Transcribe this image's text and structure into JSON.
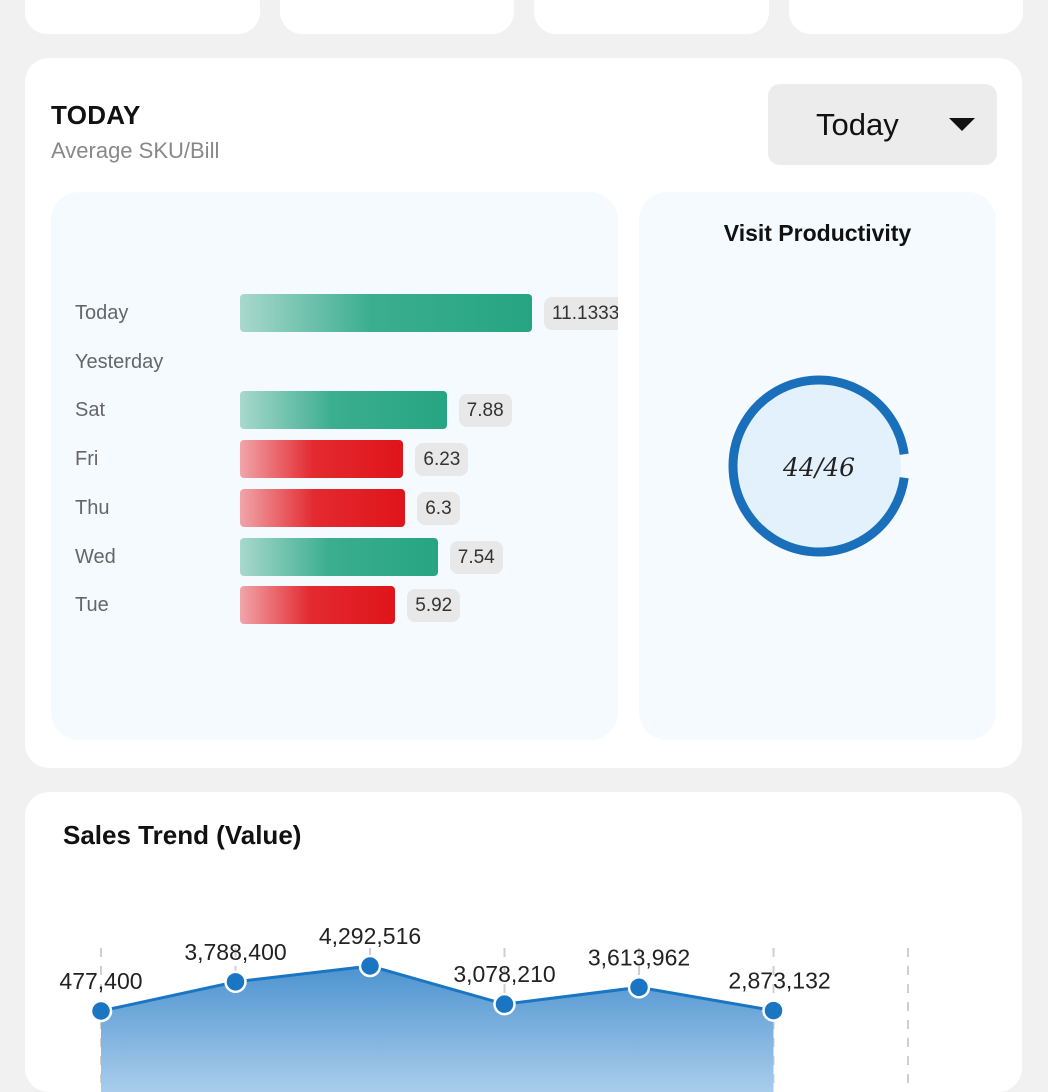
{
  "sku_card": {
    "title": "TODAY",
    "subtitle": "Average SKU/Bill",
    "period_selected": "Today"
  },
  "chart_data": [
    {
      "type": "bar",
      "orientation": "horizontal",
      "categories": [
        "Today",
        "Yesterday",
        "Sat",
        "Fri",
        "Thu",
        "Wed",
        "Tue"
      ],
      "values": [
        11.1333,
        null,
        7.88,
        6.23,
        6.3,
        7.54,
        5.92
      ],
      "value_labels": [
        "11.1333",
        "",
        "7.88",
        "6.23",
        "6.3",
        "7.54",
        "5.92"
      ],
      "status": [
        "good",
        "none",
        "good",
        "bad",
        "bad",
        "good",
        "bad"
      ],
      "xlim": [
        0,
        11.1333
      ],
      "colors": {
        "good": "#26a583",
        "bad": "#e0141b"
      }
    },
    {
      "type": "line",
      "title": "Sales Trend (Value)",
      "values": [
        477400,
        3788400,
        4292516,
        3078210,
        3613962,
        2873132
      ],
      "value_labels": [
        "477,400",
        "3,788,400",
        "4,292,516",
        "3,078,210",
        "3,613,962",
        "2,873,132"
      ],
      "color": "#1a75c2"
    }
  ],
  "visit_productivity": {
    "title": "Visit Productivity",
    "visited": 44,
    "total": 46,
    "label": "44/46",
    "ring_color": "#1a6fba",
    "fill_color": "#e3f1fd"
  }
}
